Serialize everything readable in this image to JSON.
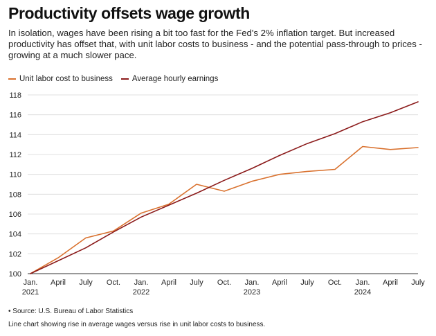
{
  "header": {
    "title": "Productivity offsets wage growth",
    "subtitle": "In isolation, wages have been rising a bit too fast for the Fed's 2% inflation target. But increased productivity has offset that, with unit labor costs to business - and the potential pass-through to prices - growing at a much slower pace."
  },
  "footer": {
    "source": "• Source: U.S. Bureau of Labor Statistics",
    "caption": "Line chart showing rise in average wages versus rise in unit labor costs to business."
  },
  "chart_data": {
    "type": "line",
    "categories": [
      "Jan.",
      "April",
      "July",
      "Oct.",
      "Jan.",
      "April",
      "July",
      "Oct.",
      "Jan.",
      "April",
      "July",
      "Oct.",
      "Jan.",
      "April",
      "July"
    ],
    "year_labels": [
      {
        "index": 0,
        "label": "2021"
      },
      {
        "index": 4,
        "label": "2022"
      },
      {
        "index": 8,
        "label": "2023"
      },
      {
        "index": 12,
        "label": "2024"
      }
    ],
    "series": [
      {
        "name": "Unit labor cost to business",
        "color": "#d9712e",
        "values": [
          100.0,
          101.6,
          103.6,
          104.3,
          106.1,
          107.0,
          109.0,
          108.3,
          109.3,
          110.0,
          110.3,
          110.5,
          112.8,
          112.5,
          112.7
        ]
      },
      {
        "name": "Average hourly earnings",
        "color": "#8b1a1a",
        "values": [
          100.0,
          101.3,
          102.6,
          104.2,
          105.7,
          106.9,
          108.1,
          109.4,
          110.6,
          111.9,
          113.1,
          114.1,
          115.3,
          116.2,
          117.3
        ]
      }
    ],
    "y_ticks": [
      100,
      102,
      104,
      106,
      108,
      110,
      112,
      114,
      116,
      118
    ],
    "ylim": [
      100,
      118
    ],
    "grid": true,
    "legend_position": "top-left"
  }
}
